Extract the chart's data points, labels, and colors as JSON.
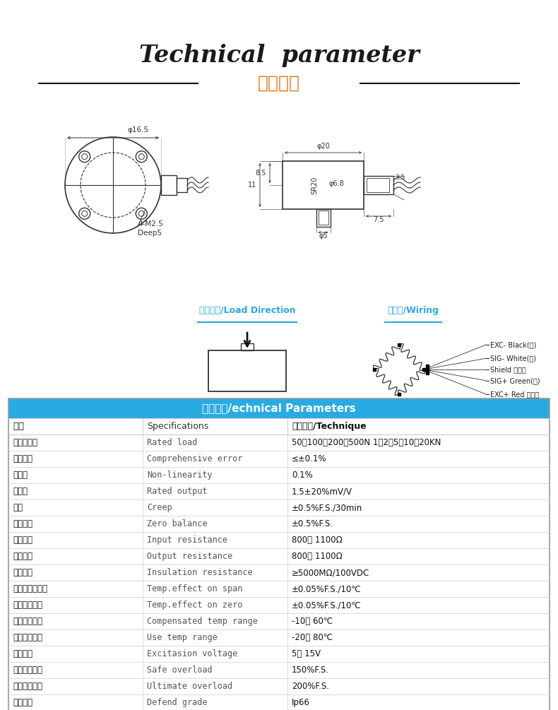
{
  "title_en": "Technical  parameter",
  "title_cn": "技术参数",
  "title_en_color": "#1a1a1a",
  "title_cn_color": "#e07820",
  "section_header": "技术参数/echnical Parameters",
  "section_bg": "#29abe2",
  "section_text_color": "#ffffff",
  "col_headers": [
    "参数",
    "Specifications",
    "技术指标/Technique"
  ],
  "table_rows": [
    [
      "传感器量程",
      "Rated load",
      "50，100，200，500N 1，2，5，10，20KN"
    ],
    [
      "综合误差",
      "Comprehensive error",
      "≤±0.1%"
    ],
    [
      "非线性",
      "Non-linearity",
      "0.1%"
    ],
    [
      "灵敏度",
      "Rated output",
      "1.5±20%mV/V"
    ],
    [
      "蚌变",
      "Creep",
      "±0.5%F.S./30min"
    ],
    [
      "零点输出",
      "Zero balance",
      "±0.5%F.S."
    ],
    [
      "输入阵抗",
      "Input resistance",
      "800｀ 1100Ω"
    ],
    [
      "输出阵抗",
      "Output resistance",
      "800｀ 1100Ω"
    ],
    [
      "绝缘电阵",
      "Insulation resistance",
      "≥5000MΩ/100VDC"
    ],
    [
      "灵敏度温度影响",
      "Temp.effect on span",
      "±0.05%F.S./10℃"
    ],
    [
      "零点温度影响",
      "Temp.effect on zero",
      "±0.05%F.S./10℃"
    ],
    [
      "温度补偿范围",
      "Compensated temp range",
      "-10｀ 60℃"
    ],
    [
      "使用温度范围",
      "Use temp range",
      "-20｀ 80℃"
    ],
    [
      "激励电压",
      "Excitasion voltage",
      "5｀ 15V"
    ],
    [
      "安全过载范围",
      "Safe overload",
      "150%F.S."
    ],
    [
      "极限过载范围",
      "Ultimate overload",
      "200%F.S."
    ],
    [
      "防护等级",
      "Defend grade",
      "Ip66"
    ]
  ],
  "load_dir_label": "受力方式/Load Direction",
  "wiring_label": "接线图/Wiring",
  "wiring_items": [
    "EXC+ Red （红）",
    "SIG+ Green(纺)",
    "Shield 屏蔽线",
    "SIG- White(白)",
    "EXC- Black(黑)"
  ],
  "bg_color": "#ffffff",
  "line_color": "#333333",
  "table_line_color": "#cccccc",
  "blue_label_color": "#29abe2"
}
